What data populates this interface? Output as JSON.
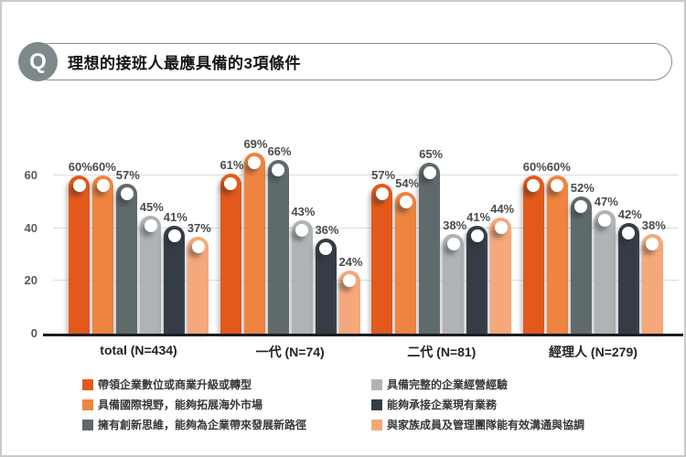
{
  "header": {
    "q_badge": "Q",
    "title": "理想的接班人最應具備的3項條件"
  },
  "chart_data": {
    "type": "bar",
    "title": "理想的接班人最應具備的3項條件",
    "unit": "%",
    "ymax": 73,
    "yticks": [
      0,
      20,
      40,
      60
    ],
    "grid": true,
    "legend_position": "bottom-two-columns",
    "categories": [
      "total (N=434)",
      "一代 (N=74)",
      "二代 (N=81)",
      "經理人 (N=279)"
    ],
    "series": [
      {
        "name": "帶領企業數位或商業升級或轉型",
        "color": "#E4581C",
        "values": [
          60,
          61,
          57,
          60
        ]
      },
      {
        "name": "具備國際視野，能夠拓展海外市場",
        "color": "#EF8440",
        "values": [
          60,
          69,
          54,
          60
        ]
      },
      {
        "name": "擁有創新思維，能夠為企業帶來發展新路徑",
        "color": "#5F6A6D",
        "values": [
          57,
          66,
          65,
          52
        ]
      },
      {
        "name": "具備完整的企業經營經驗",
        "color": "#AEB4B6",
        "values": [
          45,
          43,
          38,
          47
        ]
      },
      {
        "name": "能夠承接企業現有業務",
        "color": "#343D46",
        "values": [
          41,
          36,
          41,
          42
        ]
      },
      {
        "name": "與家族成員及管理團隊能有效溝通與協調",
        "color": "#F4A87B",
        "values": [
          37,
          24,
          44,
          38
        ]
      }
    ],
    "colors": {
      "gridline": "#DBDBDB",
      "axis_line": "#1C1C1C",
      "value_label": "#4B4B4B",
      "tick_label": "#58595B"
    }
  }
}
